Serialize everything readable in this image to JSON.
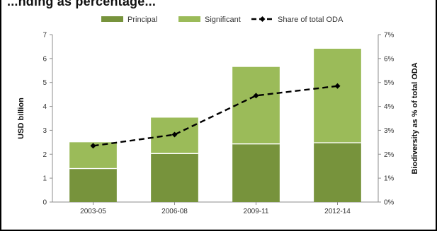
{
  "header": {
    "title_fragment": "...nding as percentage..."
  },
  "chart_data": {
    "type": "bar",
    "categories": [
      "2003-05",
      "2006-08",
      "2009-11",
      "2012-14"
    ],
    "series": [
      {
        "name": "Principal",
        "values": [
          1.4,
          2.03,
          2.43,
          2.48
        ],
        "color": "#77933c",
        "kind": "bar"
      },
      {
        "name": "Significant",
        "values": [
          1.1,
          1.5,
          3.22,
          3.93
        ],
        "color": "#9bbb59",
        "kind": "bar"
      },
      {
        "name": "Share of total ODA",
        "values": [
          2.35,
          2.82,
          4.45,
          4.85
        ],
        "color": "#000000",
        "kind": "line",
        "axis": "right"
      }
    ],
    "ylabel": "USD billion",
    "ylabel_right": "Biodiversity as % of total ODA",
    "ylim": [
      0,
      7
    ],
    "ylim_right": [
      0,
      7
    ],
    "yticks": [
      "0",
      "1",
      "2",
      "3",
      "4",
      "5",
      "6",
      "7"
    ],
    "yticks_right": [
      "0%",
      "1%",
      "2%",
      "3%",
      "4%",
      "5%",
      "6%",
      "7%"
    ],
    "legend": [
      "Principal",
      "Significant",
      "Share of total ODA"
    ],
    "legend_position": "top",
    "grid": false
  }
}
